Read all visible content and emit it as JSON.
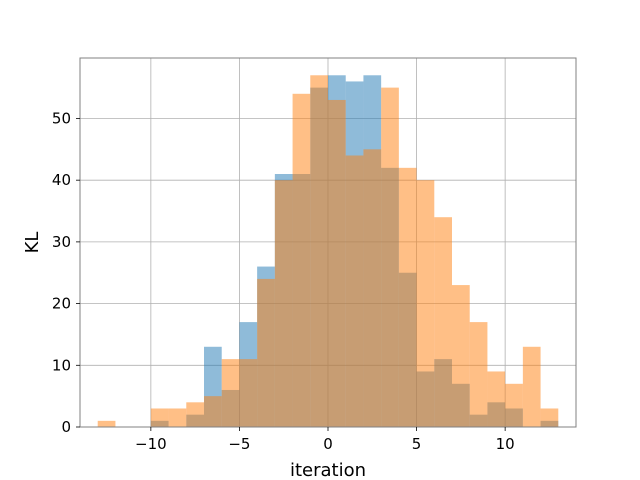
{
  "chart_data": {
    "type": "bar",
    "xlabel": "iteration",
    "ylabel": "KL",
    "xlim": [
      -14,
      14
    ],
    "ylim": [
      0,
      59.8
    ],
    "grid": true,
    "xticks": [
      -10,
      -5,
      0,
      5,
      10
    ],
    "xtick_labels": [
      "−10",
      "−5",
      "0",
      "5",
      "10"
    ],
    "yticks": [
      0,
      10,
      20,
      30,
      40,
      50
    ],
    "ytick_labels": [
      "0",
      "10",
      "20",
      "30",
      "40",
      "50"
    ],
    "series": [
      {
        "color": "#1f77b4",
        "alpha": 0.5,
        "bins": [
          {
            "x0": -10.0,
            "x1": -9.0,
            "count": 1
          },
          {
            "x0": -8.0,
            "x1": -7.0,
            "count": 2
          },
          {
            "x0": -7.0,
            "x1": -6.0,
            "count": 13
          },
          {
            "x0": -6.0,
            "x1": -5.0,
            "count": 6
          },
          {
            "x0": -5.0,
            "x1": -4.0,
            "count": 17
          },
          {
            "x0": -4.0,
            "x1": -3.0,
            "count": 26
          },
          {
            "x0": -3.0,
            "x1": -2.0,
            "count": 41
          },
          {
            "x0": -2.0,
            "x1": -1.0,
            "count": 41
          },
          {
            "x0": -1.0,
            "x1": 0.0,
            "count": 55
          },
          {
            "x0": 0.0,
            "x1": 1.0,
            "count": 57
          },
          {
            "x0": 1.0,
            "x1": 2.0,
            "count": 56
          },
          {
            "x0": 2.0,
            "x1": 3.0,
            "count": 57
          },
          {
            "x0": 3.0,
            "x1": 4.0,
            "count": 42
          },
          {
            "x0": 4.0,
            "x1": 5.0,
            "count": 25
          },
          {
            "x0": 5.0,
            "x1": 6.0,
            "count": 9
          },
          {
            "x0": 6.0,
            "x1": 7.0,
            "count": 11
          },
          {
            "x0": 7.0,
            "x1": 8.0,
            "count": 7
          },
          {
            "x0": 8.0,
            "x1": 9.0,
            "count": 2
          },
          {
            "x0": 9.0,
            "x1": 10.0,
            "count": 4
          },
          {
            "x0": 10.0,
            "x1": 11.0,
            "count": 3
          },
          {
            "x0": 12.0,
            "x1": 13.0,
            "count": 1
          }
        ]
      },
      {
        "color": "#ff7f0e",
        "alpha": 0.5,
        "bins": [
          {
            "x0": -13.0,
            "x1": -12.0,
            "count": 1
          },
          {
            "x0": -10.0,
            "x1": -9.0,
            "count": 3
          },
          {
            "x0": -9.0,
            "x1": -8.0,
            "count": 3
          },
          {
            "x0": -8.0,
            "x1": -7.0,
            "count": 4
          },
          {
            "x0": -7.0,
            "x1": -6.0,
            "count": 5
          },
          {
            "x0": -6.0,
            "x1": -5.0,
            "count": 11
          },
          {
            "x0": -5.0,
            "x1": -4.0,
            "count": 11
          },
          {
            "x0": -4.0,
            "x1": -3.0,
            "count": 24
          },
          {
            "x0": -3.0,
            "x1": -2.0,
            "count": 40
          },
          {
            "x0": -2.0,
            "x1": -1.0,
            "count": 54
          },
          {
            "x0": -1.0,
            "x1": 0.0,
            "count": 57
          },
          {
            "x0": 0.0,
            "x1": 1.0,
            "count": 53
          },
          {
            "x0": 1.0,
            "x1": 2.0,
            "count": 44
          },
          {
            "x0": 2.0,
            "x1": 3.0,
            "count": 45
          },
          {
            "x0": 3.0,
            "x1": 4.0,
            "count": 55
          },
          {
            "x0": 4.0,
            "x1": 5.0,
            "count": 42
          },
          {
            "x0": 5.0,
            "x1": 6.0,
            "count": 40
          },
          {
            "x0": 6.0,
            "x1": 7.0,
            "count": 34
          },
          {
            "x0": 7.0,
            "x1": 8.0,
            "count": 23
          },
          {
            "x0": 8.0,
            "x1": 9.0,
            "count": 17
          },
          {
            "x0": 9.0,
            "x1": 10.0,
            "count": 9
          },
          {
            "x0": 10.0,
            "x1": 11.0,
            "count": 7
          },
          {
            "x0": 11.0,
            "x1": 12.0,
            "count": 13
          },
          {
            "x0": 12.0,
            "x1": 13.0,
            "count": 3
          },
          {
            "x0": 13.0,
            "x1": 14.0,
            "count": 0
          }
        ]
      }
    ]
  }
}
